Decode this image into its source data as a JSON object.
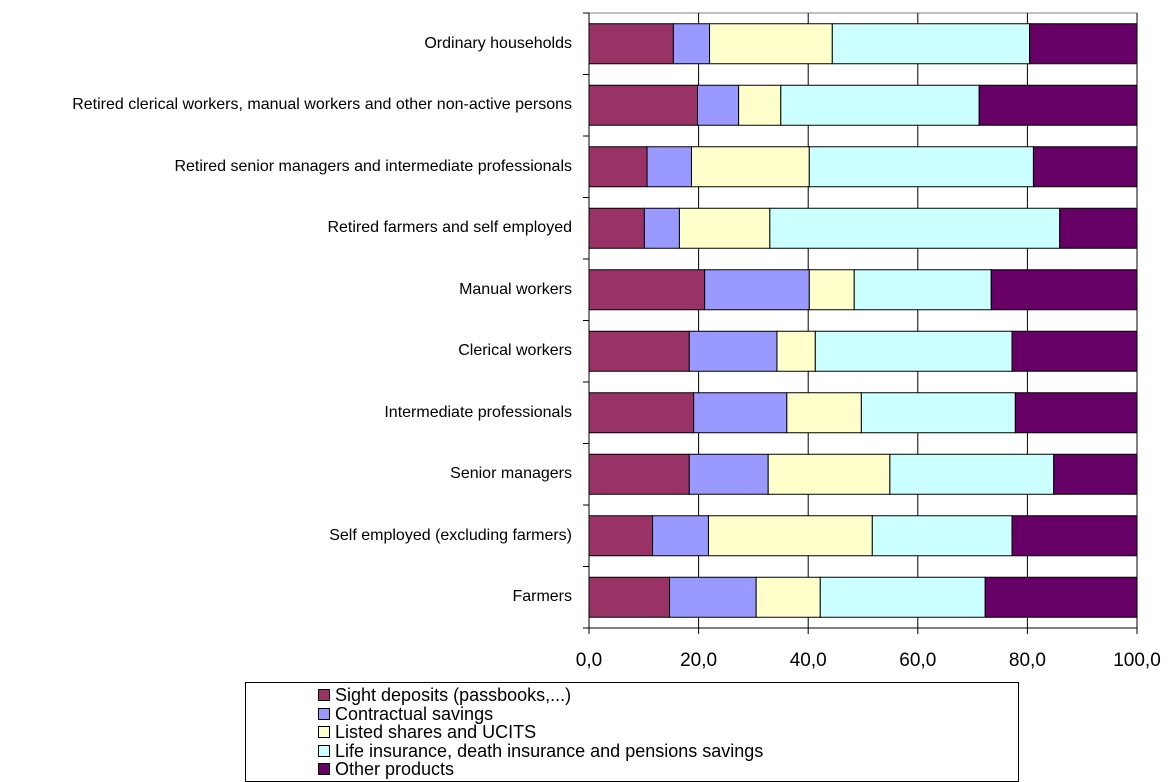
{
  "chart_data": {
    "type": "stacked-bar",
    "orientation": "horizontal",
    "categories": [
      "Ordinary households",
      "Retired clerical workers, manual workers and other non-active persons",
      "Retired senior managers and intermediate professionals",
      "Retired farmers and self employed",
      "Manual workers",
      "Clerical workers",
      "Intermediate professionals",
      "Senior managers",
      "Self employed (excluding farmers)",
      "Farmers"
    ],
    "series": [
      {
        "name": "Sight deposits (passbooks,...)",
        "color": "#993366",
        "values": [
          15.4,
          19.8,
          10.6,
          10.1,
          21.1,
          18.3,
          19.1,
          18.3,
          11.6,
          14.7
        ]
      },
      {
        "name": "Contractual savings",
        "color": "#9999ff",
        "values": [
          6.6,
          7.5,
          8.1,
          6.4,
          19.1,
          16.0,
          17.0,
          14.4,
          10.2,
          15.8
        ]
      },
      {
        "name": "Listed shares and UCITS",
        "color": "#ffffcc",
        "values": [
          22.4,
          7.7,
          21.5,
          16.5,
          8.2,
          7.0,
          13.6,
          22.2,
          29.9,
          11.7
        ]
      },
      {
        "name": "Life insurance, death insurance and pensions savings",
        "color": "#ccffff",
        "values": [
          36.0,
          36.2,
          40.9,
          52.9,
          25.0,
          35.9,
          28.1,
          29.9,
          25.5,
          30.1
        ]
      },
      {
        "name": "Other products",
        "color": "#660066",
        "values": [
          19.6,
          28.8,
          18.9,
          14.1,
          26.6,
          22.8,
          22.2,
          15.2,
          22.8,
          27.7
        ]
      }
    ],
    "xlim": [
      0,
      100
    ],
    "xticks": [
      {
        "value": 0,
        "label": "0,0"
      },
      {
        "value": 20,
        "label": "20,0"
      },
      {
        "value": 40,
        "label": "40,0"
      },
      {
        "value": 60,
        "label": "60,0"
      },
      {
        "value": 80,
        "label": "80,0"
      },
      {
        "value": 100,
        "label": "100,0"
      }
    ],
    "grid": true
  }
}
